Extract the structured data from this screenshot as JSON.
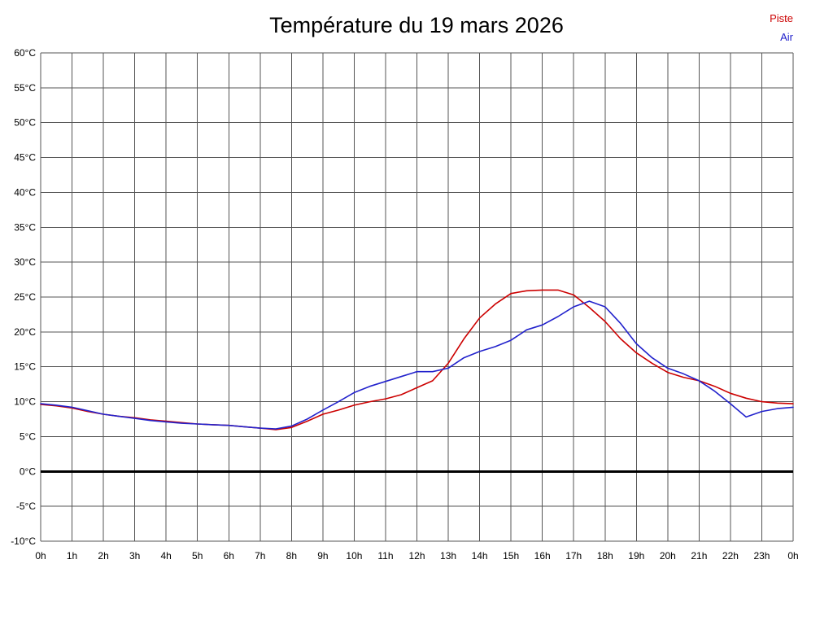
{
  "title": "Température du 19 mars 2026",
  "legend": {
    "piste": {
      "label": "Piste",
      "color": "#cc0000"
    },
    "air": {
      "label": "Air",
      "color": "#2222cc"
    }
  },
  "chart_data": {
    "type": "line",
    "title": "Température du 19 mars 2026",
    "xlabel": "",
    "ylabel": "",
    "xlim": [
      0,
      24
    ],
    "ylim": [
      -10,
      60
    ],
    "ytick_step": 5,
    "ytick_suffix": "°C",
    "xtick_labels": [
      "0h",
      "1h",
      "2h",
      "3h",
      "4h",
      "5h",
      "6h",
      "7h",
      "8h",
      "9h",
      "10h",
      "11h",
      "12h",
      "13h",
      "14h",
      "15h",
      "16h",
      "17h",
      "18h",
      "19h",
      "20h",
      "21h",
      "22h",
      "23h",
      "0h"
    ],
    "grid": true,
    "grid_color": "#555555",
    "axis_label_color": "#000000",
    "zero_line": {
      "value": 0,
      "color": "#000000",
      "width": 3
    },
    "legend_position": "top-right",
    "x": [
      0,
      0.5,
      1,
      1.5,
      2,
      2.5,
      3,
      3.5,
      4,
      4.5,
      5,
      5.5,
      6,
      6.5,
      7,
      7.5,
      8,
      8.5,
      9,
      9.5,
      10,
      10.5,
      11,
      11.5,
      12,
      12.5,
      13,
      13.5,
      14,
      14.5,
      15,
      15.5,
      16,
      16.5,
      17,
      17.5,
      18,
      18.5,
      19,
      19.5,
      20,
      20.5,
      21,
      21.5,
      22,
      22.5,
      23,
      23.5,
      24
    ],
    "series": [
      {
        "name": "Piste",
        "color": "#cc0000",
        "values": [
          9.6,
          9.4,
          9.1,
          8.6,
          8.2,
          7.9,
          7.7,
          7.4,
          7.2,
          7.0,
          6.8,
          6.7,
          6.6,
          6.4,
          6.2,
          6.0,
          6.3,
          7.2,
          8.2,
          8.8,
          9.5,
          10.0,
          10.4,
          11.0,
          12.0,
          13.0,
          15.5,
          19.0,
          22.0,
          24.0,
          25.5,
          25.9,
          26.0,
          26.0,
          25.3,
          23.5,
          21.5,
          19.0,
          17.0,
          15.5,
          14.2,
          13.5,
          13.0,
          12.2,
          11.2,
          10.5,
          10.0,
          9.8,
          9.7
        ]
      },
      {
        "name": "Air",
        "color": "#2222cc",
        "values": [
          9.7,
          9.5,
          9.2,
          8.7,
          8.2,
          7.9,
          7.6,
          7.3,
          7.1,
          6.9,
          6.8,
          6.7,
          6.6,
          6.4,
          6.2,
          6.1,
          6.5,
          7.5,
          8.8,
          10.0,
          11.3,
          12.2,
          12.9,
          13.6,
          14.3,
          14.3,
          14.8,
          16.3,
          17.2,
          17.9,
          18.8,
          20.3,
          21.0,
          22.2,
          23.6,
          24.4,
          23.6,
          21.2,
          18.3,
          16.3,
          14.8,
          14.0,
          13.0,
          11.5,
          9.7,
          7.8,
          8.6,
          9.0,
          9.2
        ]
      }
    ]
  }
}
